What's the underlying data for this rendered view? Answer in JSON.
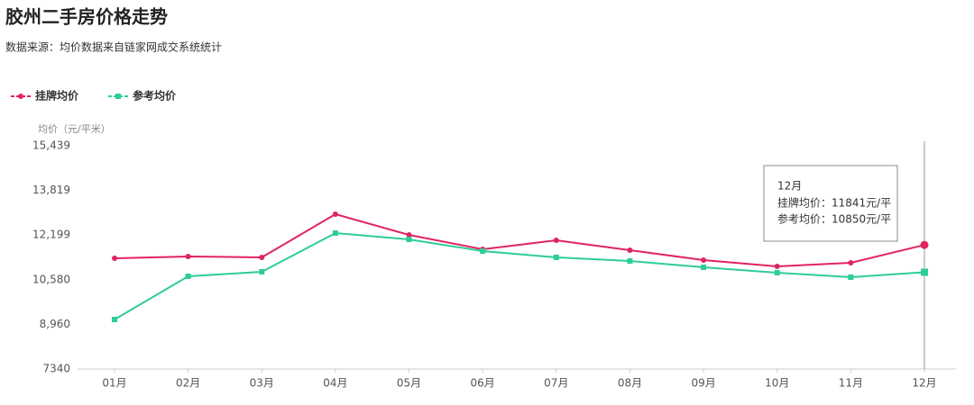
{
  "chart_data": {
    "type": "line",
    "title": "胶州二手房价格走势",
    "subtitle": "数据来源：均价数据来自链家网成交系统统计",
    "y_label": "均价（元/平米）",
    "categories": [
      "01月",
      "02月",
      "03月",
      "04月",
      "05月",
      "06月",
      "07月",
      "08月",
      "09月",
      "10月",
      "11月",
      "12月"
    ],
    "series": [
      {
        "name": "挂牌均价",
        "color": "#e0245e",
        "marker": "circle",
        "values": [
          11357,
          11422,
          11390,
          12958,
          12206,
          11684,
          12010,
          11651,
          11292,
          11063,
          11194,
          11841
        ]
      },
      {
        "name": "参考均价",
        "color": "#2ecc9a",
        "marker": "square",
        "values": [
          9136,
          10704,
          10867,
          12272,
          12043,
          11618,
          11390,
          11259,
          11031,
          10835,
          10671,
          10850
        ]
      }
    ],
    "ylim": [
      7340,
      15439
    ],
    "yticks": [
      7340,
      {
        "value": 8960,
        "label": "8,960"
      },
      {
        "value": 10580,
        "label": "10,580"
      },
      {
        "value": 12199,
        "label": "12,199"
      },
      {
        "value": 13819,
        "label": "13,819"
      },
      {
        "value": 15439,
        "label": "15,439"
      }
    ],
    "grid": false,
    "tooltip": {
      "index": 11,
      "title": "12月",
      "lines": [
        "挂牌均价：11841元/平",
        "参考均价：10850元/平"
      ]
    }
  }
}
